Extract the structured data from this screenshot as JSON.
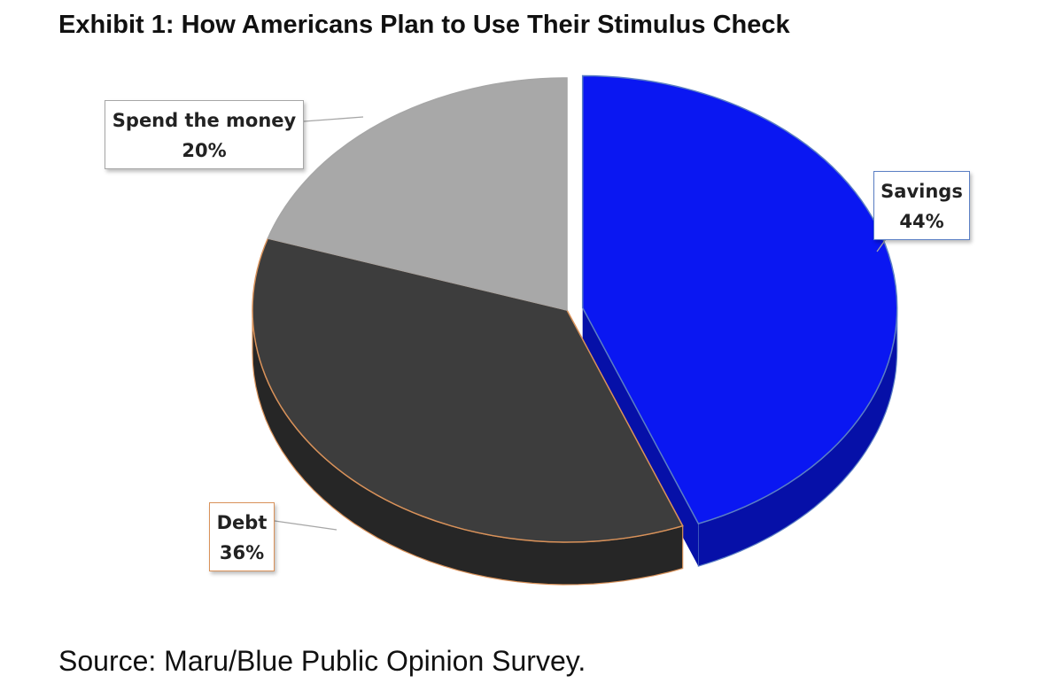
{
  "title": "Exhibit 1: How Americans Plan to Use Their Stimulus Check",
  "source": "Source: Maru/Blue Public Opinion Survey.",
  "chart_data": {
    "type": "pie",
    "title": "Exhibit 1: How Americans Plan to Use Their Stimulus Check",
    "slices": [
      {
        "label": "Savings",
        "value": 44,
        "value_label": "44%",
        "color": "#0a17f2",
        "side_color": "#0610a8",
        "border_color": "#5b7fc4"
      },
      {
        "label": "Debt",
        "value": 36,
        "value_label": "36%",
        "color": "#3d3d3d",
        "side_color": "#262626",
        "border_color": "#d9925a"
      },
      {
        "label": "Spend the money",
        "value": 20,
        "value_label": "20%",
        "color": "#a8a8a8",
        "side_color": "#8a8a8a",
        "border_color": "#a6a6a6"
      }
    ],
    "exploded_slice": "Savings",
    "three_d": true
  }
}
